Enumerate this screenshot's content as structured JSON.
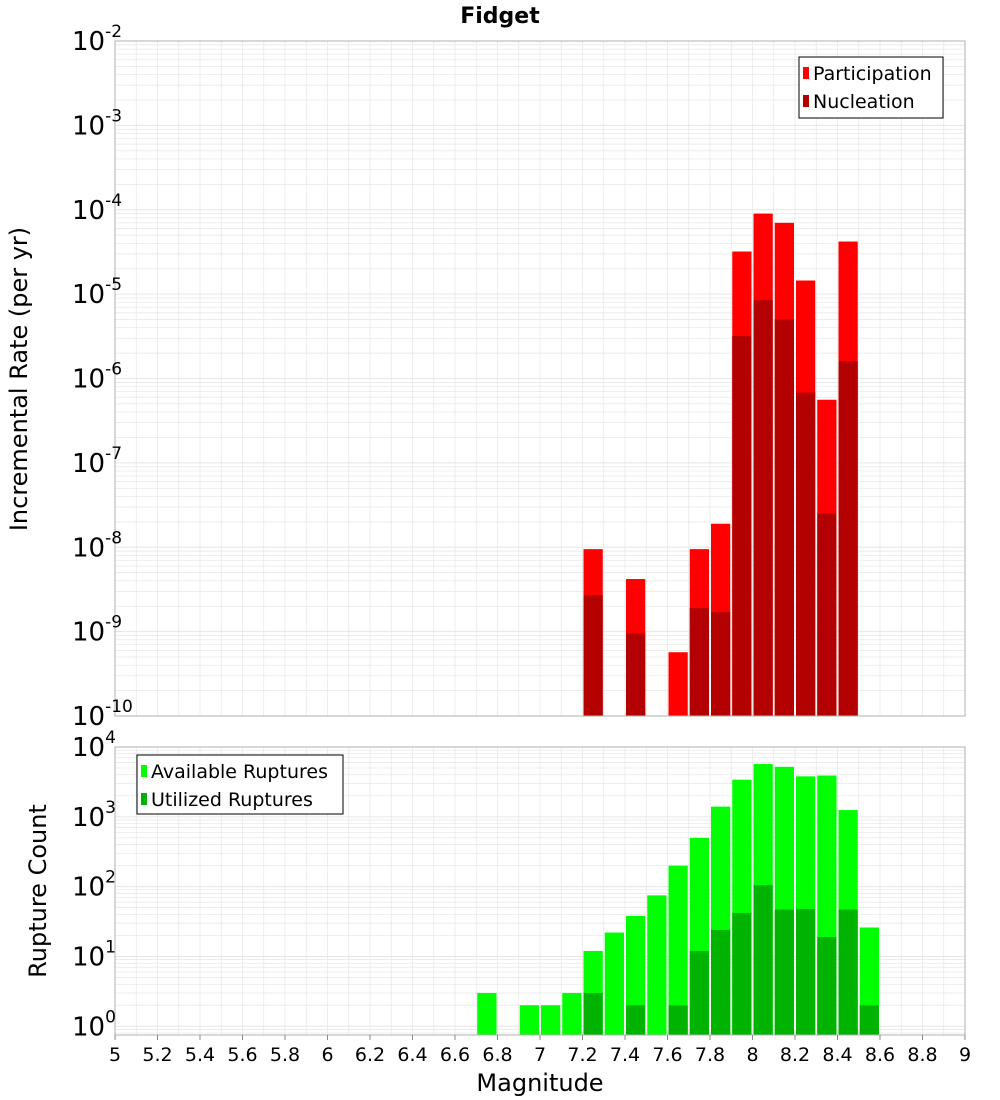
{
  "title": "Fidget",
  "x_axis_label": "Magnitude",
  "chart_data": [
    {
      "type": "bar",
      "name": "rates",
      "ylabel": "Incremental Rate (per yr)",
      "yscale": "log",
      "ylim": [
        1e-10,
        0.01
      ],
      "y_ticks": [
        {
          "base": "10",
          "exp": "-10"
        },
        {
          "base": "10",
          "exp": "-9"
        },
        {
          "base": "10",
          "exp": "-8"
        },
        {
          "base": "10",
          "exp": "-7"
        },
        {
          "base": "10",
          "exp": "-6"
        },
        {
          "base": "10",
          "exp": "-5"
        },
        {
          "base": "10",
          "exp": "-4"
        },
        {
          "base": "10",
          "exp": "-3"
        },
        {
          "base": "10",
          "exp": "-2"
        }
      ],
      "xlim": [
        5,
        9
      ],
      "bin_width": 0.1,
      "grid": true,
      "legend_position": "top-right",
      "series": [
        {
          "name": "Participation",
          "color": "#ff0000",
          "x": [
            7.25,
            7.45,
            7.65,
            7.75,
            7.85,
            7.95,
            8.05,
            8.15,
            8.25,
            8.35,
            8.45
          ],
          "values": [
            9.5e-09,
            4.2e-09,
            5.7e-10,
            9.5e-09,
            1.9e-08,
            3.2e-05,
            9e-05,
            7e-05,
            1.45e-05,
            5.6e-07,
            4.2e-05
          ]
        },
        {
          "name": "Nucleation",
          "color": "#b30000",
          "x": [
            7.25,
            7.45,
            7.75,
            7.85,
            7.95,
            8.05,
            8.15,
            8.25,
            8.35,
            8.45
          ],
          "values": [
            2.7e-09,
            9.5e-10,
            1.9e-09,
            1.7e-09,
            3.2e-06,
            8.5e-06,
            5e-06,
            6.8e-07,
            2.5e-08,
            1.6e-06
          ]
        }
      ]
    },
    {
      "type": "bar",
      "name": "counts",
      "ylabel": "Rupture Count",
      "yscale": "log",
      "ylim": [
        0.75,
        10000.0
      ],
      "y_ticks": [
        {
          "base": "10",
          "exp": "0"
        },
        {
          "base": "10",
          "exp": "1"
        },
        {
          "base": "10",
          "exp": "2"
        },
        {
          "base": "10",
          "exp": "3"
        },
        {
          "base": "10",
          "exp": "4"
        }
      ],
      "xlim": [
        5,
        9
      ],
      "bin_width": 0.1,
      "grid": true,
      "legend_position": "top-left",
      "series": [
        {
          "name": "Available Ruptures",
          "color": "#00ff00",
          "x": [
            6.75,
            6.95,
            7.05,
            7.15,
            7.25,
            7.35,
            7.45,
            7.55,
            7.65,
            7.75,
            7.85,
            7.95,
            8.05,
            8.15,
            8.25,
            8.35,
            8.45,
            8.55
          ],
          "values": [
            3,
            2,
            2,
            3,
            12,
            22,
            38,
            75,
            200,
            500,
            1400,
            3400,
            5700,
            5200,
            3800,
            3900,
            1250,
            26
          ]
        },
        {
          "name": "Utilized Ruptures",
          "color": "#00b300",
          "x": [
            7.25,
            7.45,
            7.65,
            7.75,
            7.85,
            7.95,
            8.05,
            8.15,
            8.25,
            8.35,
            8.45,
            8.55
          ],
          "values": [
            3,
            2,
            2,
            12,
            24,
            42,
            105,
            47,
            48,
            19,
            47,
            2
          ]
        }
      ]
    }
  ],
  "x_ticks": [
    "5",
    "5.2",
    "5.4",
    "5.6",
    "5.8",
    "6",
    "6.2",
    "6.4",
    "6.6",
    "6.8",
    "7",
    "7.2",
    "7.4",
    "7.6",
    "7.8",
    "8",
    "8.2",
    "8.4",
    "8.6",
    "8.8",
    "9"
  ],
  "colors": {
    "participation": "#ff0000",
    "nucleation": "#b30000",
    "available": "#00ff00",
    "utilized": "#00b300",
    "grid": "#e6e6e6",
    "frame": "#b0b0b0"
  }
}
